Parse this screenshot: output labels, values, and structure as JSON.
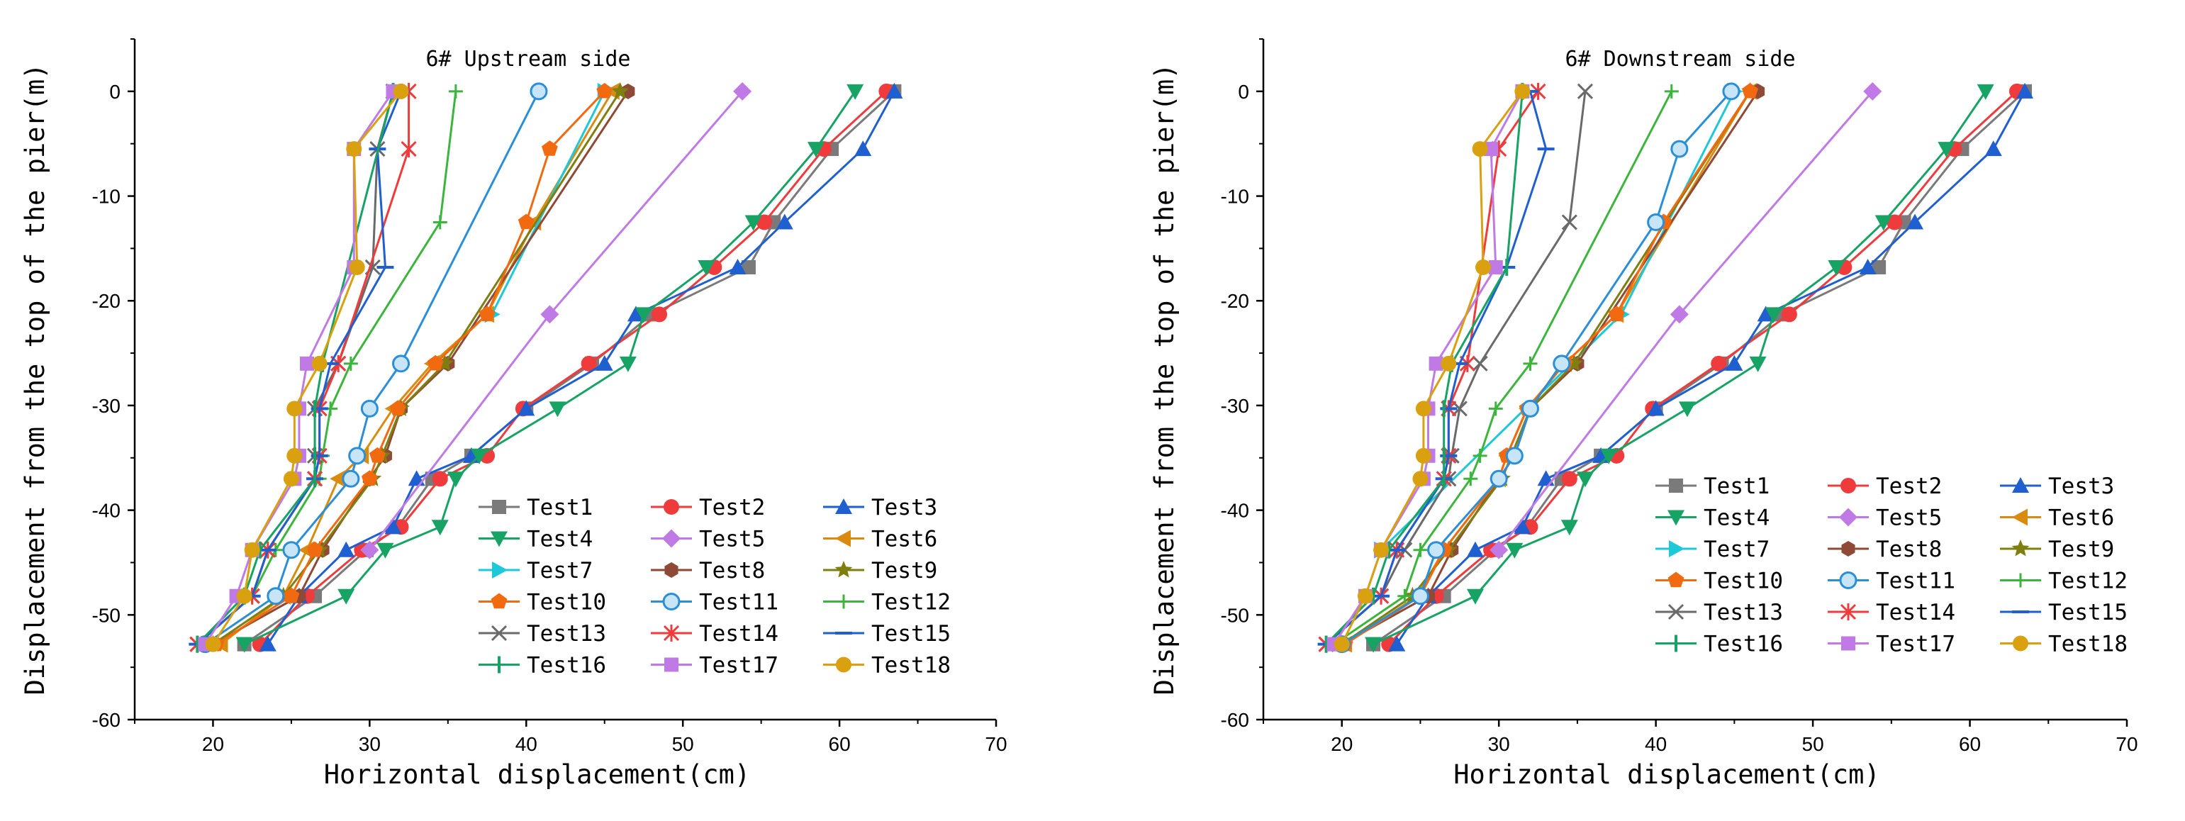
{
  "chart_data": [
    {
      "type": "line",
      "title": "6# Upstream side",
      "xlabel": "Horizontal displacement(cm)",
      "ylabel": "Displacement from the top of the pier(m)",
      "xlim": [
        15,
        70
      ],
      "ylim": [
        -60,
        5
      ],
      "xticks": [
        20,
        30,
        40,
        50,
        60,
        70
      ],
      "yticks": [
        0,
        -10,
        -20,
        -30,
        -40,
        -50,
        -60
      ],
      "legend_position": "bottom-right",
      "depths": [
        0,
        -5.5,
        -12.5,
        -16.8,
        -21.3,
        -26,
        -30.3,
        -34.8,
        -37,
        -41.6,
        -43.8,
        -48.2,
        -52.8
      ],
      "series": [
        {
          "name": "Test1",
          "color": "#7a7a7a",
          "marker": "square",
          "x": [
            63.5,
            59.5,
            55.8,
            54.2,
            48.0,
            44.2,
            40.0,
            36.5,
            34.0,
            31.8,
            29.8,
            26.5,
            22.0
          ]
        },
        {
          "name": "Test2",
          "color": "#ef3b3b",
          "marker": "circle",
          "x": [
            63.0,
            59.0,
            55.2,
            52.0,
            48.5,
            44.0,
            39.8,
            37.5,
            34.5,
            32.0,
            29.5,
            26.0,
            23.0
          ]
        },
        {
          "name": "Test3",
          "color": "#1f5fd0",
          "marker": "triangle-up",
          "x": [
            63.5,
            61.5,
            56.5,
            53.5,
            47.0,
            45.0,
            40.0,
            36.5,
            33.0,
            31.5,
            28.5,
            25.5,
            23.5
          ]
        },
        {
          "name": "Test4",
          "color": "#17a364",
          "marker": "triangle-down",
          "x": [
            61.0,
            58.5,
            54.5,
            51.5,
            47.5,
            46.5,
            42.0,
            37.0,
            35.5,
            34.5,
            31.0,
            28.5,
            22.0
          ]
        },
        {
          "name": "Test5",
          "color": "#c07ae6",
          "marker": "diamond",
          "x": [
            53.8,
            null,
            null,
            null,
            41.5,
            null,
            null,
            null,
            null,
            null,
            30.0,
            null,
            null
          ]
        },
        {
          "name": "Test6",
          "color": "#d98b10",
          "marker": "triangle-left",
          "x": [
            45.5,
            null,
            40.5,
            null,
            37.5,
            34.0,
            31.5,
            29.5,
            28.0,
            null,
            26.0,
            24.5,
            20.5
          ]
        },
        {
          "name": "Test7",
          "color": "#1fc8d8",
          "marker": "triangle-right",
          "x": [
            45.0,
            null,
            null,
            null,
            37.8,
            null,
            null,
            null,
            null,
            null,
            null,
            null,
            null
          ]
        },
        {
          "name": "Test8",
          "color": "#8e4a36",
          "marker": "hexagon",
          "x": [
            46.5,
            null,
            null,
            null,
            null,
            35.0,
            32.0,
            31.0,
            30.0,
            null,
            27.0,
            25.5,
            20.0
          ]
        },
        {
          "name": "Test9",
          "color": "#7f7f10",
          "marker": "star",
          "x": [
            46.0,
            null,
            null,
            null,
            null,
            34.8,
            32.0,
            30.8,
            30.2,
            null,
            26.8,
            24.5,
            20.0
          ]
        },
        {
          "name": "Test10",
          "color": "#f26a10",
          "marker": "pentagon",
          "x": [
            45.0,
            41.5,
            40.0,
            null,
            37.5,
            34.2,
            31.8,
            30.5,
            30.0,
            null,
            26.5,
            25.0,
            20.2
          ]
        },
        {
          "name": "Test11",
          "color": "#2a8fd8",
          "marker": "sphere",
          "x": [
            40.8,
            null,
            null,
            null,
            null,
            32.0,
            30.0,
            29.2,
            28.8,
            null,
            25.0,
            24.0,
            19.5
          ]
        },
        {
          "name": "Test12",
          "color": "#3cb53c",
          "marker": "plus",
          "x": [
            35.5,
            null,
            34.5,
            null,
            null,
            28.8,
            27.5,
            27.0,
            26.8,
            null,
            24.0,
            22.5,
            19.0
          ]
        },
        {
          "name": "Test13",
          "color": "#6a6a6a",
          "marker": "x",
          "x": [
            31.5,
            30.5,
            null,
            30.2,
            null,
            28.0,
            26.5,
            26.5,
            26.5,
            null,
            23.5,
            22.5,
            19.0
          ]
        },
        {
          "name": "Test14",
          "color": "#ef3b3b",
          "marker": "asterisk",
          "x": [
            32.5,
            32.5,
            null,
            null,
            null,
            28.0,
            26.8,
            26.8,
            26.5,
            null,
            23.5,
            22.5,
            19.0
          ]
        },
        {
          "name": "Test15",
          "color": "#1f5fd0",
          "marker": "dash",
          "x": [
            32.0,
            30.5,
            null,
            31.0,
            null,
            27.5,
            26.8,
            26.8,
            26.5,
            null,
            23.5,
            22.5,
            19.0
          ]
        },
        {
          "name": "Test16",
          "color": "#17a364",
          "marker": "vbar",
          "x": [
            31.5,
            null,
            null,
            null,
            null,
            27.0,
            26.5,
            26.5,
            26.5,
            null,
            23.0,
            22.0,
            19.0
          ]
        },
        {
          "name": "Test17",
          "color": "#c07ae6",
          "marker": "square",
          "x": [
            31.5,
            29.0,
            null,
            29.0,
            null,
            26.0,
            25.5,
            25.5,
            25.2,
            null,
            22.5,
            21.5,
            19.5
          ]
        },
        {
          "name": "Test18",
          "color": "#d9a010",
          "marker": "circle",
          "x": [
            32.0,
            29.0,
            null,
            29.2,
            null,
            26.8,
            25.2,
            25.2,
            25.0,
            null,
            22.5,
            22.0,
            20.0
          ]
        }
      ]
    },
    {
      "type": "line",
      "title": "6# Downstream side",
      "xlabel": "Horizontal displacement(cm)",
      "ylabel": "Displacement from the top of the pier(m)",
      "xlim": [
        15,
        70
      ],
      "ylim": [
        -60,
        5
      ],
      "xticks": [
        20,
        30,
        40,
        50,
        60,
        70
      ],
      "yticks": [
        0,
        -10,
        -20,
        -30,
        -40,
        -50,
        -60
      ],
      "legend_position": "bottom-right",
      "depths": [
        0,
        -5.5,
        -12.5,
        -16.8,
        -21.3,
        -26,
        -30.3,
        -34.8,
        -37,
        -41.6,
        -43.8,
        -48.2,
        -52.8
      ],
      "series": [
        {
          "name": "Test1",
          "color": "#7a7a7a",
          "marker": "square",
          "x": [
            63.5,
            59.5,
            55.8,
            54.2,
            48.0,
            44.2,
            40.0,
            36.5,
            34.0,
            31.8,
            29.8,
            26.5,
            22.0
          ]
        },
        {
          "name": "Test2",
          "color": "#ef3b3b",
          "marker": "circle",
          "x": [
            63.0,
            59.0,
            55.2,
            52.0,
            48.5,
            44.0,
            39.8,
            37.5,
            34.5,
            32.0,
            29.5,
            26.0,
            23.0
          ]
        },
        {
          "name": "Test3",
          "color": "#1f5fd0",
          "marker": "triangle-up",
          "x": [
            63.5,
            61.5,
            56.5,
            53.5,
            47.0,
            45.0,
            40.0,
            36.5,
            33.0,
            31.5,
            28.5,
            25.5,
            23.5
          ]
        },
        {
          "name": "Test4",
          "color": "#17a364",
          "marker": "triangle-down",
          "x": [
            61.0,
            58.5,
            54.5,
            51.5,
            47.5,
            46.5,
            42.0,
            37.0,
            35.5,
            34.5,
            31.0,
            28.5,
            22.0
          ]
        },
        {
          "name": "Test5",
          "color": "#c07ae6",
          "marker": "diamond",
          "x": [
            53.8,
            null,
            null,
            null,
            41.5,
            null,
            null,
            null,
            null,
            null,
            30.0,
            null,
            null
          ]
        },
        {
          "name": "Test6",
          "color": "#d98b10",
          "marker": "triangle-left",
          "x": [
            46.0,
            null,
            null,
            null,
            37.5,
            34.2,
            31.8,
            30.5,
            30.0,
            null,
            26.5,
            24.8,
            20.2
          ]
        },
        {
          "name": "Test7",
          "color": "#1fc8d8",
          "marker": "triangle-right",
          "x": [
            45.0,
            null,
            null,
            null,
            37.8,
            null,
            null,
            null,
            null,
            null,
            22.5,
            null,
            null
          ]
        },
        {
          "name": "Test8",
          "color": "#8e4a36",
          "marker": "hexagon",
          "x": [
            46.5,
            null,
            null,
            null,
            null,
            35.0,
            32.0,
            31.0,
            30.0,
            null,
            27.0,
            25.5,
            20.0
          ]
        },
        {
          "name": "Test9",
          "color": "#7f7f10",
          "marker": "star",
          "x": [
            46.0,
            null,
            null,
            null,
            null,
            34.8,
            32.0,
            30.8,
            30.2,
            null,
            26.8,
            24.5,
            20.0
          ]
        },
        {
          "name": "Test10",
          "color": "#f26a10",
          "marker": "pentagon",
          "x": [
            46.0,
            null,
            40.5,
            null,
            37.5,
            34.2,
            31.8,
            30.5,
            30.0,
            null,
            26.5,
            25.0,
            20.2
          ]
        },
        {
          "name": "Test11",
          "color": "#2a8fd8",
          "marker": "sphere",
          "x": [
            44.8,
            41.5,
            40.0,
            null,
            null,
            34.0,
            32.0,
            31.0,
            30.0,
            null,
            26.0,
            25.0,
            20.0
          ]
        },
        {
          "name": "Test12",
          "color": "#3cb53c",
          "marker": "plus",
          "x": [
            41.0,
            null,
            null,
            null,
            null,
            32.0,
            29.8,
            28.8,
            28.2,
            null,
            25.0,
            24.0,
            19.5
          ]
        },
        {
          "name": "Test13",
          "color": "#6a6a6a",
          "marker": "x",
          "x": [
            35.5,
            null,
            34.5,
            null,
            null,
            28.8,
            27.5,
            27.0,
            26.8,
            null,
            24.0,
            22.5,
            19.0
          ]
        },
        {
          "name": "Test14",
          "color": "#ef3b3b",
          "marker": "asterisk",
          "x": [
            32.5,
            30.0,
            null,
            null,
            null,
            28.0,
            26.8,
            26.8,
            26.5,
            null,
            23.5,
            22.5,
            19.0
          ]
        },
        {
          "name": "Test15",
          "color": "#1f5fd0",
          "marker": "dash",
          "x": [
            32.0,
            33.0,
            null,
            30.5,
            null,
            27.5,
            26.8,
            26.8,
            26.5,
            null,
            23.5,
            22.5,
            19.0
          ]
        },
        {
          "name": "Test16",
          "color": "#17a364",
          "marker": "vbar",
          "x": [
            31.5,
            null,
            null,
            30.5,
            null,
            27.0,
            26.5,
            26.5,
            26.5,
            null,
            23.0,
            22.0,
            19.0
          ]
        },
        {
          "name": "Test17",
          "color": "#c07ae6",
          "marker": "square",
          "x": [
            31.5,
            29.5,
            null,
            29.8,
            null,
            26.0,
            25.5,
            25.5,
            25.2,
            null,
            22.5,
            21.5,
            19.5
          ]
        },
        {
          "name": "Test18",
          "color": "#d9a010",
          "marker": "circle",
          "x": [
            31.5,
            28.8,
            null,
            29.0,
            null,
            26.8,
            25.2,
            25.2,
            25.0,
            null,
            22.5,
            21.5,
            20.0
          ]
        }
      ]
    }
  ]
}
